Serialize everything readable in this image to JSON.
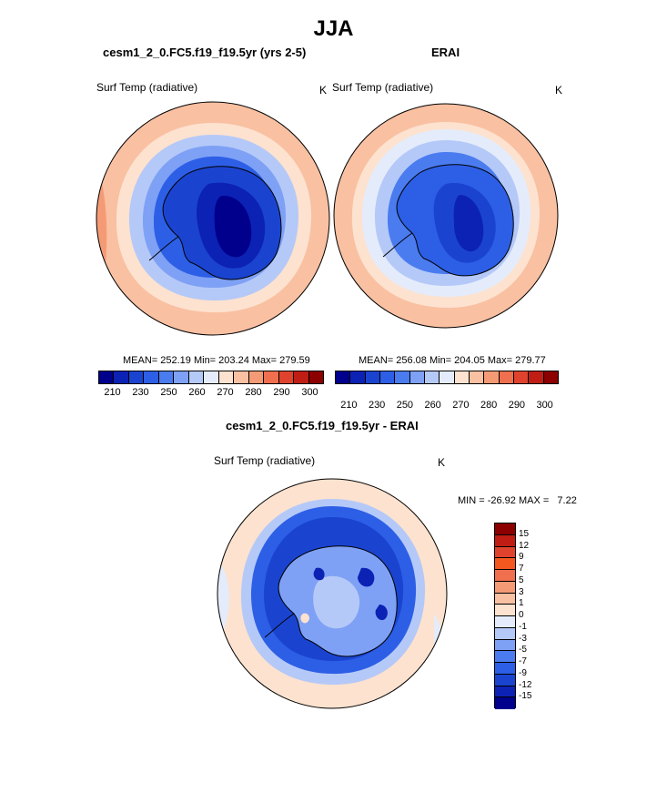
{
  "title": "JJA",
  "top_left": {
    "case": "cesm1_2_0.FC5.f19_f19.5yr (yrs 2-5)",
    "variable": "Surf Temp (radiative)",
    "units": "K",
    "stats": "MEAN= 252.19  Min= 203.24  Max= 279.59"
  },
  "top_right": {
    "case": "ERAI",
    "variable": "Surf Temp (radiative)",
    "units": "K",
    "stats": "MEAN= 256.08  Min= 204.05  Max= 279.77"
  },
  "bottom": {
    "case": "cesm1_2_0.FC5.f19_f19.5yr - ERAI",
    "variable": "Surf Temp (radiative)",
    "units": "K",
    "stats": "MIN = -26.92 MAX =   7.22"
  },
  "abs_colorbar": {
    "colors": [
      "#00008c",
      "#0c22b4",
      "#1a44d0",
      "#2d5fe6",
      "#4a7cf0",
      "#7ea1f5",
      "#b5c9f8",
      "#e4ecfb",
      "#fde2cf",
      "#f9c0a2",
      "#f49b76",
      "#ef6f4f",
      "#e0432d",
      "#c01d14",
      "#8c0000"
    ],
    "tick_labels": [
      "210",
      "230",
      "250",
      "260",
      "270",
      "280",
      "290",
      "300"
    ]
  },
  "diff_colorbar": {
    "colors": [
      "#8c0000",
      "#c01d14",
      "#e0432d",
      "#f4581e",
      "#ef6f4f",
      "#f49b76",
      "#f9c0a2",
      "#fde2cf",
      "#e4ecfb",
      "#b5c9f8",
      "#7ea1f5",
      "#4a7cf0",
      "#2d5fe6",
      "#1a44d0",
      "#0c22b4",
      "#00008c"
    ],
    "tick_labels": [
      "15",
      "12",
      "9",
      "7",
      "5",
      "3",
      "1",
      "0",
      "-1",
      "-3",
      "-5",
      "-7",
      "-9",
      "-12",
      "-15"
    ]
  },
  "map_colors": {
    "ocean_warm": "#f9c0a2",
    "ocean_pale": "#fde2cf",
    "ice_edge": "#b5c9f8",
    "ice_mid": "#4a7cf0",
    "ice_deep": "#1a44d0",
    "plateau": "#0c22b4",
    "plateau_core": "#00008c",
    "diff_bg": "#fde2cf",
    "diff_pale": "#e4ecfb"
  }
}
